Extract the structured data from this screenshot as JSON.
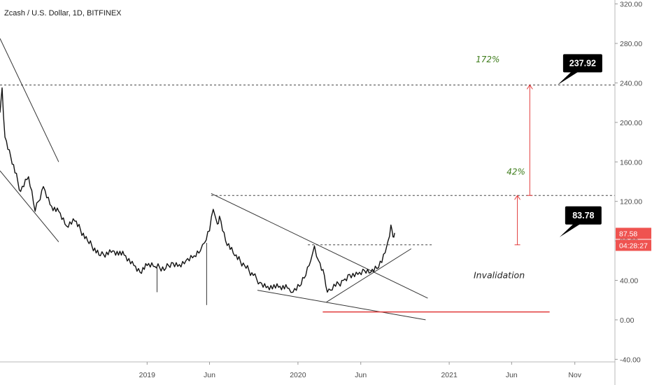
{
  "chart_data": {
    "type": "candlestick",
    "title": "Zcash / U.S. Dollar, 1D, BITFINEX",
    "y_axis": {
      "ticks": [
        "320.00",
        "280.00",
        "240.00",
        "200.00",
        "160.00",
        "120.00",
        "80.00",
        "40.00",
        "0.00",
        "-40.00"
      ],
      "tick_values": [
        320,
        280,
        240,
        200,
        160,
        120,
        80,
        40,
        0,
        -40
      ],
      "range": [
        -66,
        324
      ]
    },
    "x_axis": {
      "ticks": [
        "2019",
        "Jun",
        "2020",
        "Jun",
        "2021",
        "Jun",
        "Nov"
      ],
      "tick_dates": [
        "2019-01-01",
        "2019-06-01",
        "2020-01-01",
        "2020-06-01",
        "2021-01-01",
        "2021-06-01",
        "2021-11-01"
      ],
      "range": [
        "2018-01-10",
        "2022-02-06"
      ]
    },
    "price_series": {
      "name": "",
      "color": "#111111",
      "points": [
        [
          "2018-01-10",
          210
        ],
        [
          "2018-01-15",
          235
        ],
        [
          "2018-01-22",
          185
        ],
        [
          "2018-02-05",
          165
        ],
        [
          "2018-03-01",
          130
        ],
        [
          "2018-03-20",
          145
        ],
        [
          "2018-04-05",
          110
        ],
        [
          "2018-04-25",
          135
        ],
        [
          "2018-05-15",
          115
        ],
        [
          "2018-06-01",
          110
        ],
        [
          "2018-06-20",
          95
        ],
        [
          "2018-07-10",
          100
        ],
        [
          "2018-08-10",
          80
        ],
        [
          "2018-09-10",
          65
        ],
        [
          "2018-10-10",
          70
        ],
        [
          "2018-11-10",
          65
        ],
        [
          "2018-11-30",
          55
        ],
        [
          "2018-12-15",
          48
        ],
        [
          "2019-01-01",
          55
        ],
        [
          "2019-01-20",
          54
        ],
        [
          "2019-02-15",
          52
        ],
        [
          "2019-03-01",
          58
        ],
        [
          "2019-03-20",
          56
        ],
        [
          "2019-04-05",
          60
        ],
        [
          "2019-04-25",
          65
        ],
        [
          "2019-05-10",
          70
        ],
        [
          "2019-05-20",
          78
        ],
        [
          "2019-06-01",
          90
        ],
        [
          "2019-06-10",
          112
        ],
        [
          "2019-06-20",
          97
        ],
        [
          "2019-06-25",
          105
        ],
        [
          "2019-07-10",
          80
        ],
        [
          "2019-08-01",
          65
        ],
        [
          "2019-08-25",
          55
        ],
        [
          "2019-09-15",
          45
        ],
        [
          "2019-10-01",
          38
        ],
        [
          "2019-10-20",
          34
        ],
        [
          "2019-11-15",
          33
        ],
        [
          "2019-12-10",
          32
        ],
        [
          "2019-12-20",
          28
        ],
        [
          "2020-01-05",
          34
        ],
        [
          "2020-01-20",
          45
        ],
        [
          "2020-02-01",
          60
        ],
        [
          "2020-02-10",
          75
        ],
        [
          "2020-02-20",
          60
        ],
        [
          "2020-03-05",
          45
        ],
        [
          "2020-03-12",
          28
        ],
        [
          "2020-03-20",
          30
        ],
        [
          "2020-04-01",
          34
        ],
        [
          "2020-04-20",
          40
        ],
        [
          "2020-05-05",
          46
        ],
        [
          "2020-05-25",
          46
        ],
        [
          "2020-06-10",
          50
        ],
        [
          "2020-06-25",
          48
        ],
        [
          "2020-07-10",
          52
        ],
        [
          "2020-07-22",
          58
        ],
        [
          "2020-07-30",
          68
        ],
        [
          "2020-08-06",
          80
        ],
        [
          "2020-08-13",
          96
        ],
        [
          "2020-08-18",
          84
        ],
        [
          "2020-08-22",
          88
        ]
      ],
      "minor_lows": [
        [
          "2019-01-25",
          28
        ],
        [
          "2019-05-25",
          15
        ]
      ]
    },
    "current_price": {
      "label": "87.58",
      "value": 87.58,
      "countdown": "04:28:27",
      "color": "#ef5350"
    },
    "levels": [
      {
        "price": 237.92,
        "callout": "237.92",
        "style": "dashed"
      },
      {
        "price": 126,
        "style": "dashed"
      },
      {
        "price": 76,
        "style": "dashed"
      }
    ],
    "callouts": [
      {
        "text": "237.92",
        "price": 237.92,
        "date": "2021-09-20"
      },
      {
        "text": "83.78",
        "price": 83.78,
        "date": "2021-09-25"
      }
    ],
    "targets": [
      {
        "label": "172%",
        "from_price": 126,
        "to_price": 237.92,
        "date": "2021-07-15",
        "label_price": 261
      },
      {
        "label": "42%",
        "from_price": 76,
        "to_price": 126,
        "date": "2021-06-15",
        "label_price": 147
      }
    ],
    "trendlines": [
      {
        "from": [
          "2018-01-10",
          285
        ],
        "to": [
          "2018-06-01",
          160
        ]
      },
      {
        "from": [
          "2018-01-10",
          151
        ],
        "to": [
          "2018-06-01",
          79
        ]
      },
      {
        "from": [
          "2019-06-05",
          128
        ],
        "to": [
          "2020-11-10",
          22
        ]
      },
      {
        "from": [
          "2019-09-25",
          30
        ],
        "to": [
          "2020-11-05",
          0
        ]
      },
      {
        "from": [
          "2020-03-10",
          18
        ],
        "to": [
          "2020-10-01",
          72
        ]
      }
    ],
    "invalidation": {
      "label": "Invalidation",
      "price": 8,
      "from": "2020-03-01",
      "to": "2021-09-01",
      "color": "#e03a3a",
      "label_date": "2021-03-01",
      "label_price": 42
    },
    "grid": false
  }
}
